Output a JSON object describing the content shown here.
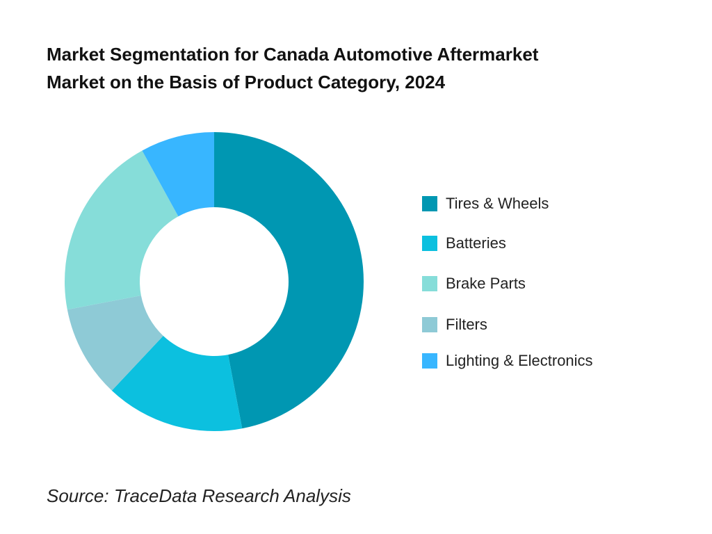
{
  "header": {
    "title_line1": "Market Segmentation for Canada Automotive Aftermarket",
    "title_line2": "Market on the Basis of Product Category, 2024"
  },
  "chart_data": {
    "type": "pie",
    "donut": true,
    "title": "Market Segmentation for Canada Automotive Aftermarket Market on the Basis of Product Category, 2024",
    "categories": [
      "Tires & Wheels",
      "Batteries",
      "Brake Parts",
      "Filters",
      "Lighting & Electronics"
    ],
    "values": [
      47,
      15,
      20,
      10,
      8
    ],
    "slice_order_clockwise_from_top": [
      "Tires & Wheels",
      "Batteries",
      "Filters",
      "Brake Parts",
      "Lighting & Electronics"
    ],
    "colors": {
      "Tires & Wheels": "#0097B2",
      "Batteries": "#0CC0DF",
      "Brake Parts": "#86DDD9",
      "Filters": "#8ECAD6",
      "Lighting & Electronics": "#38B6FF"
    },
    "legend_position": "right"
  },
  "legend": {
    "items": [
      {
        "label": "Tires & Wheels",
        "color": "#0097B2"
      },
      {
        "label": "Batteries",
        "color": "#0CC0DF"
      },
      {
        "label": "Brake Parts",
        "color": "#86DDD9"
      },
      {
        "label": "Filters",
        "color": "#8ECAD6"
      },
      {
        "label": "Lighting & Electronics",
        "color": "#38B6FF"
      }
    ]
  },
  "footer": {
    "source": "Source: TraceData Research Analysis"
  }
}
